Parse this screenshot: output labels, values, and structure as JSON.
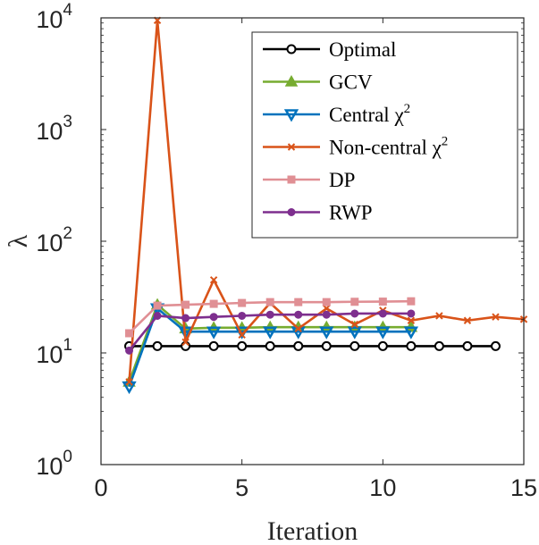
{
  "chart_data": {
    "type": "line",
    "xlabel": "Iteration",
    "ylabel": "λ",
    "xlim": [
      0,
      15
    ],
    "ylim": [
      1,
      10000
    ],
    "yscale": "log",
    "grid": false,
    "legend_position": "top-right",
    "x_ticks": [
      {
        "value": 0,
        "label": "0"
      },
      {
        "value": 5,
        "label": "5"
      },
      {
        "value": 10,
        "label": "10"
      },
      {
        "value": 15,
        "label": "15"
      }
    ],
    "y_ticks": [
      {
        "value": 1,
        "base": "10",
        "exp": "0"
      },
      {
        "value": 10,
        "base": "10",
        "exp": "1"
      },
      {
        "value": 100,
        "base": "10",
        "exp": "2"
      },
      {
        "value": 1000,
        "base": "10",
        "exp": "3"
      },
      {
        "value": 10000,
        "base": "10",
        "exp": "4"
      }
    ],
    "series": [
      {
        "name": "Optimal",
        "label": "Optimal",
        "sup": "",
        "color": "#000000",
        "marker": "circle",
        "x": [
          1,
          2,
          3,
          4,
          5,
          6,
          7,
          8,
          9,
          10,
          11,
          12,
          13,
          14
        ],
        "values": [
          11.5,
          11.5,
          11.5,
          11.5,
          11.5,
          11.5,
          11.5,
          11.5,
          11.5,
          11.5,
          11.5,
          11.5,
          11.5,
          11.5
        ]
      },
      {
        "name": "GCV",
        "label": "GCV",
        "sup": "",
        "color": "#77ac30",
        "marker": "triangle-up",
        "x": [
          1,
          2,
          3,
          4,
          5,
          6,
          7,
          8,
          9,
          10,
          11
        ],
        "values": [
          5.5,
          27,
          16.5,
          16.8,
          16.8,
          17,
          17,
          17,
          17,
          17,
          17
        ]
      },
      {
        "name": "Central χ2",
        "label": "Central χ",
        "sup": "2",
        "color": "#0072bd",
        "marker": "triangle-down",
        "x": [
          1,
          2,
          3,
          4,
          5,
          6,
          7,
          8,
          9,
          10,
          11
        ],
        "values": [
          5,
          25,
          15.5,
          15.5,
          15.5,
          15.5,
          15.5,
          15.5,
          15.5,
          15.5,
          15.5
        ]
      },
      {
        "name": "Non-central χ2",
        "label": "Non-central χ",
        "sup": "2",
        "color": "#d95319",
        "marker": "x",
        "x": [
          1,
          2,
          3,
          4,
          5,
          6,
          7,
          8,
          9,
          10,
          11,
          12,
          13,
          14,
          15
        ],
        "values": [
          5.5,
          9500,
          12.5,
          45,
          14.5,
          28,
          16.5,
          25,
          18,
          24,
          19.5,
          21.5,
          19.5,
          21,
          20
        ]
      },
      {
        "name": "DP",
        "label": "DP",
        "sup": "",
        "color": "#e08f94",
        "marker": "square",
        "x": [
          1,
          2,
          3,
          4,
          5,
          6,
          7,
          8,
          9,
          10,
          11
        ],
        "values": [
          15,
          26.5,
          27,
          27.5,
          28,
          28.5,
          28.5,
          28.5,
          28.7,
          28.8,
          29
        ]
      },
      {
        "name": "RWP",
        "label": "RWP",
        "sup": "",
        "color": "#7e2f8e",
        "marker": "circle-filled",
        "x": [
          1,
          2,
          3,
          4,
          5,
          6,
          7,
          8,
          9,
          10,
          11
        ],
        "values": [
          10.5,
          21.5,
          20.5,
          21,
          21.5,
          22,
          22,
          22,
          22.5,
          22.5,
          22.5
        ]
      }
    ]
  }
}
